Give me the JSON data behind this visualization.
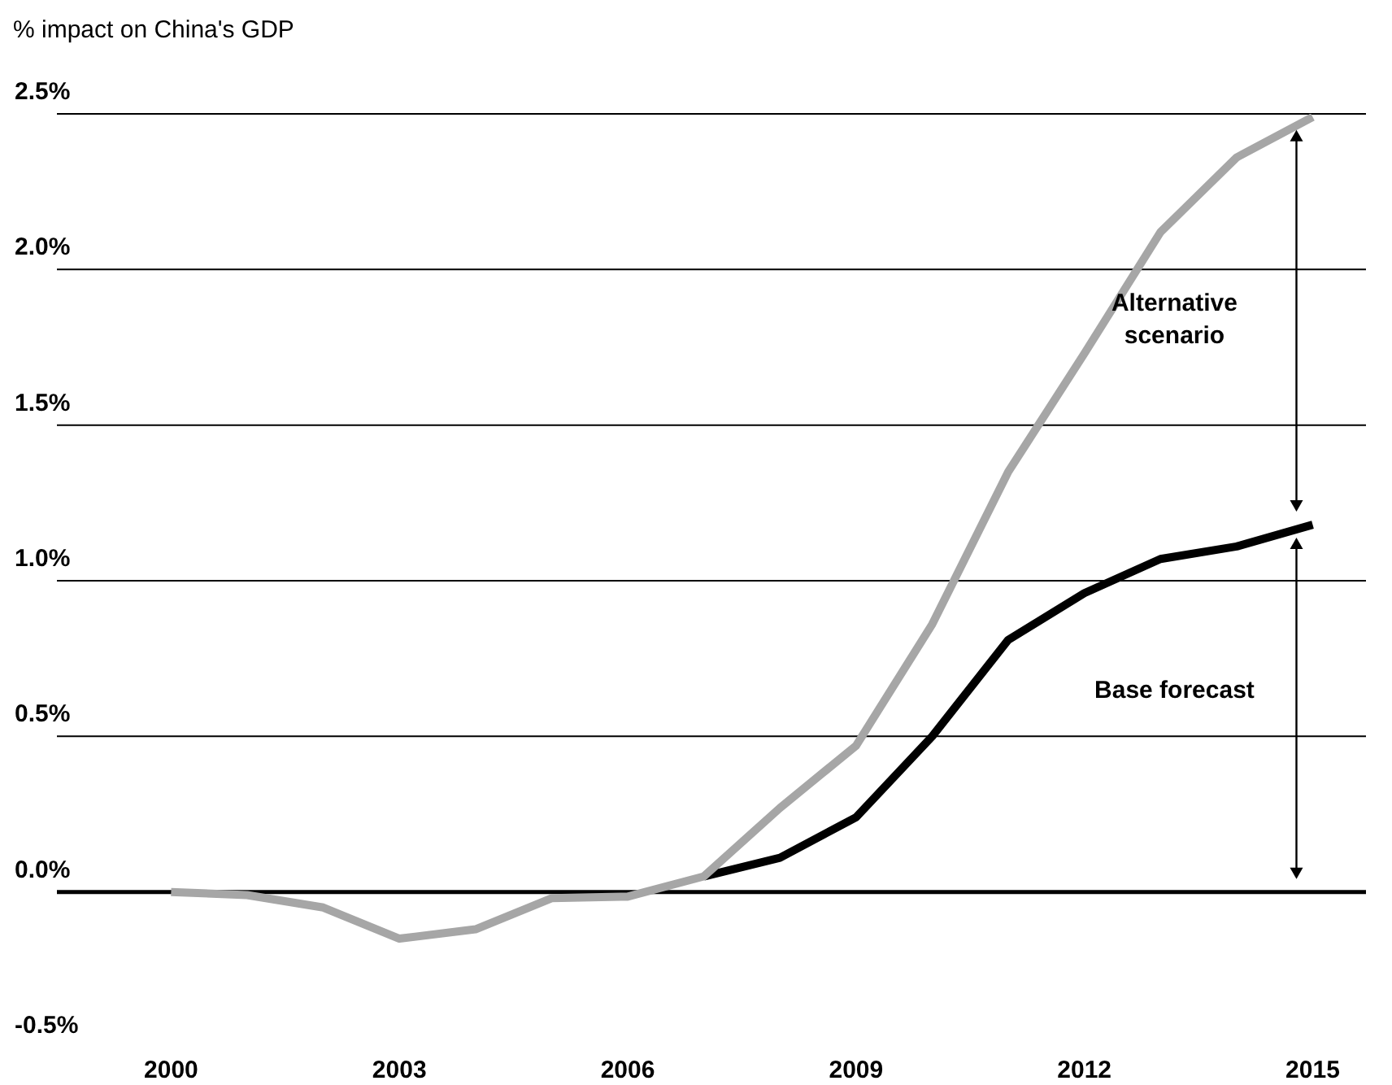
{
  "chart_data": {
    "type": "line",
    "ylabel": "% impact on China's GDP",
    "x": [
      2000,
      2001,
      2002,
      2003,
      2004,
      2005,
      2006,
      2007,
      2008,
      2009,
      2010,
      2011,
      2012,
      2013,
      2014,
      2015
    ],
    "series": [
      {
        "color": "#000000",
        "values": [
          null,
          null,
          null,
          null,
          null,
          null,
          null,
          0.05,
          0.11,
          0.24,
          0.5,
          0.81,
          0.96,
          1.07,
          1.11,
          1.18
        ]
      },
      {
        "color": "#a6a6a6",
        "values": [
          0,
          -0.01,
          -0.05,
          -0.15,
          -0.12,
          -0.02,
          -0.015,
          0.05,
          0.27,
          0.47,
          0.86,
          1.35,
          1.73,
          2.12,
          2.36,
          2.49
        ]
      }
    ],
    "xlim": [
      1998.5,
      2015.7
    ],
    "xticks": [
      2000,
      2003,
      2006,
      2009,
      2012,
      2015
    ],
    "ylim": [
      -0.5,
      2.5
    ],
    "yticks": [
      {
        "value": -0.5,
        "label": "-0.5%"
      },
      {
        "value": 0,
        "label": "0.0%"
      },
      {
        "value": 0.5,
        "label": "0.5%"
      },
      {
        "value": 1,
        "label": "1.0%"
      },
      {
        "value": 1.5,
        "label": "1.5%"
      },
      {
        "value": 2,
        "label": "2.0%"
      },
      {
        "value": 2.5,
        "label": "2.5%"
      }
    ],
    "grid": "y",
    "legend": false,
    "marker": "none",
    "line_style": "solid",
    "ref_lines": [
      {
        "axis": "y",
        "value": 0,
        "color": "#000000"
      }
    ],
    "annotations": [
      "Alternative scenario",
      "Base forecast"
    ]
  }
}
